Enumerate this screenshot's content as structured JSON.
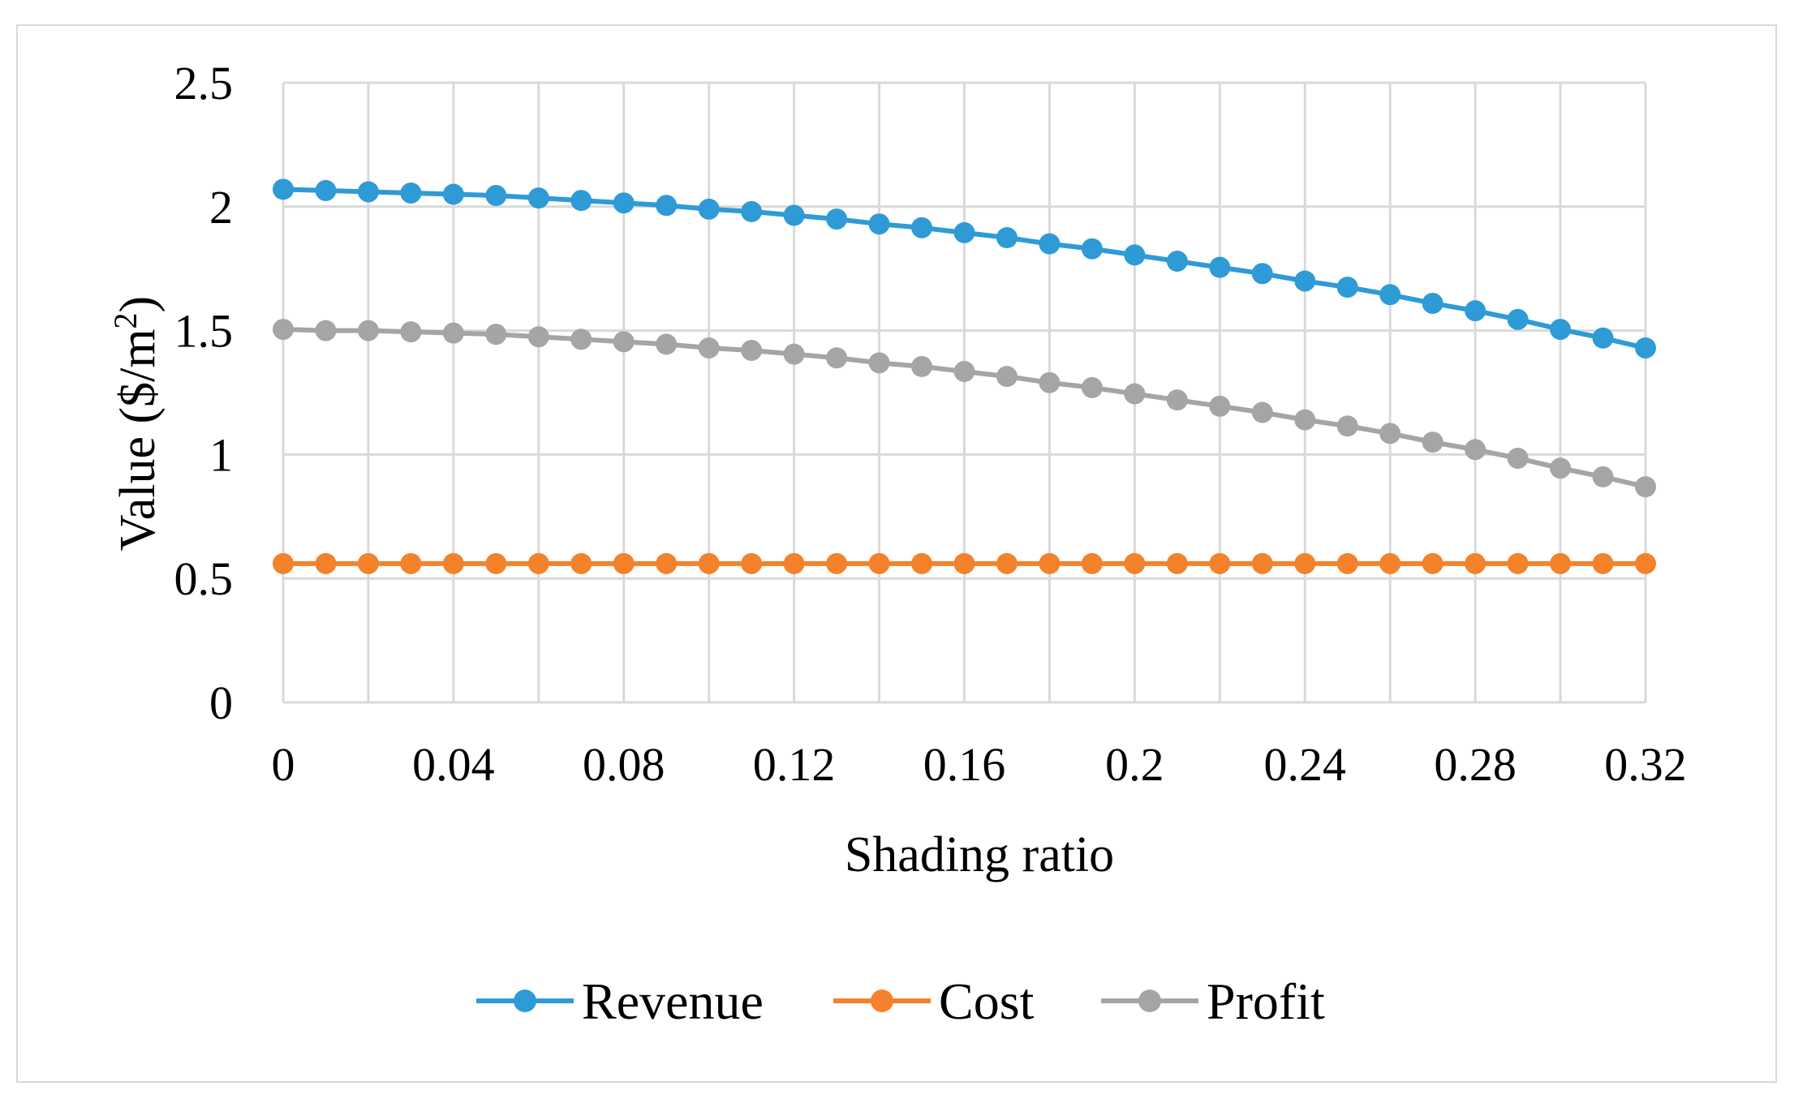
{
  "chart_data": {
    "type": "line",
    "title": "",
    "xlabel": "Shading ratio",
    "ylabel": "Value ($/m",
    "ylabel_superscript": "2",
    "ylabel_suffix": ")",
    "xlim": [
      0,
      0.32
    ],
    "ylim": [
      0,
      2.5
    ],
    "x_ticks": [
      "0",
      "0.04",
      "0.08",
      "0.12",
      "0.16",
      "0.2",
      "0.24",
      "0.28",
      "0.32"
    ],
    "y_ticks": [
      "0",
      "0.5",
      "1",
      "1.5",
      "2",
      "2.5"
    ],
    "grid": true,
    "legend_position": "bottom",
    "x": [
      0,
      0.01,
      0.02,
      0.03,
      0.04,
      0.05,
      0.06,
      0.07,
      0.08,
      0.09,
      0.1,
      0.11,
      0.12,
      0.13,
      0.14,
      0.15,
      0.16,
      0.17,
      0.18,
      0.19,
      0.2,
      0.21,
      0.22,
      0.23,
      0.24,
      0.25,
      0.26,
      0.27,
      0.28,
      0.29,
      0.3,
      0.31,
      0.32
    ],
    "series": [
      {
        "name": "Revenue",
        "color": "#2E9BD6",
        "values": [
          2.07,
          2.065,
          2.06,
          2.055,
          2.05,
          2.045,
          2.035,
          2.025,
          2.015,
          2.005,
          1.99,
          1.98,
          1.965,
          1.95,
          1.93,
          1.915,
          1.895,
          1.875,
          1.85,
          1.83,
          1.805,
          1.78,
          1.755,
          1.73,
          1.7,
          1.675,
          1.645,
          1.61,
          1.58,
          1.545,
          1.505,
          1.47,
          1.43
        ]
      },
      {
        "name": "Cost",
        "color": "#F4822B",
        "values": [
          0.56,
          0.56,
          0.56,
          0.56,
          0.56,
          0.56,
          0.56,
          0.56,
          0.56,
          0.56,
          0.56,
          0.56,
          0.56,
          0.56,
          0.56,
          0.56,
          0.56,
          0.56,
          0.56,
          0.56,
          0.56,
          0.56,
          0.56,
          0.56,
          0.56,
          0.56,
          0.56,
          0.56,
          0.56,
          0.56,
          0.56,
          0.56,
          0.56
        ]
      },
      {
        "name": "Profit",
        "color": "#A5A5A5",
        "values": [
          1.505,
          1.5,
          1.5,
          1.495,
          1.49,
          1.485,
          1.475,
          1.465,
          1.455,
          1.445,
          1.43,
          1.42,
          1.405,
          1.39,
          1.37,
          1.355,
          1.335,
          1.315,
          1.29,
          1.27,
          1.245,
          1.22,
          1.195,
          1.17,
          1.14,
          1.115,
          1.085,
          1.05,
          1.02,
          0.985,
          0.945,
          0.91,
          0.87
        ]
      }
    ]
  }
}
